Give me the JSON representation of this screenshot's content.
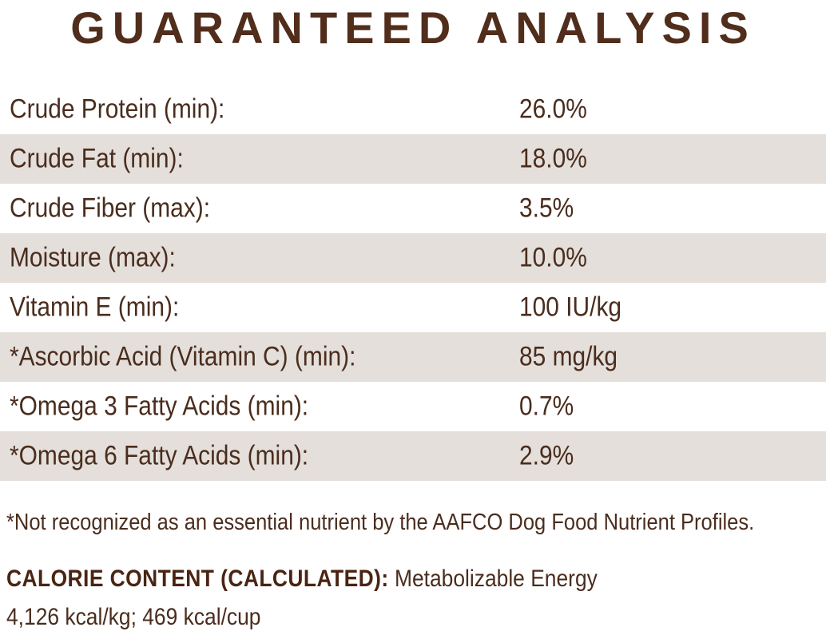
{
  "title": "GUARANTEED ANALYSIS",
  "table": {
    "rows": [
      {
        "label": "Crude Protein (min):",
        "value": "26.0%"
      },
      {
        "label": "Crude Fat (min):",
        "value": "18.0%"
      },
      {
        "label": "Crude Fiber (max):",
        "value": "3.5%"
      },
      {
        "label": "Moisture (max):",
        "value": "10.0%"
      },
      {
        "label": "Vitamin E (min):",
        "value": "100 IU/kg"
      },
      {
        "label": "*Ascorbic Acid (Vitamin C) (min):",
        "value": "85 mg/kg"
      },
      {
        "label": "*Omega 3 Fatty Acids (min):",
        "value": "0.7%"
      },
      {
        "label": "*Omega 6 Fatty Acids (min):",
        "value": "2.9%"
      }
    ]
  },
  "footnote": "*Not recognized as an essential nutrient by the AAFCO Dog Food Nutrient Profiles.",
  "calorie": {
    "label": "CALORIE CONTENT (CALCULATED):",
    "text": "Metabolizable Energy",
    "values": "4,126 kcal/kg; 469 kcal/cup"
  },
  "colors": {
    "title_brown": "#512d1c",
    "text_brown": "#4a2d1e",
    "row_alt_bg": "#e4dfda",
    "background": "#ffffff"
  }
}
